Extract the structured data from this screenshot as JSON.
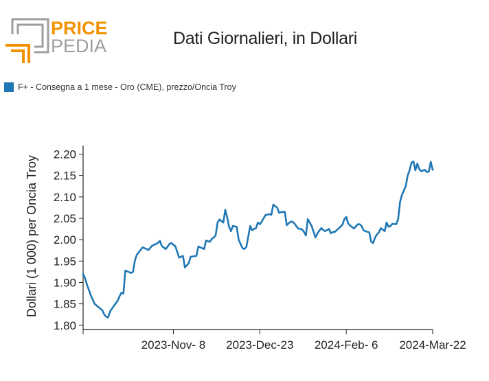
{
  "brand": {
    "line1": "PRICE",
    "line2": "PEDIA"
  },
  "title": "Dati Giornalieri, in Dollari",
  "legend": {
    "label": "F+ - Consegna a 1 mese - Oro (CME), prezzo/Oncia Troy"
  },
  "colors": {
    "series": "#1f77b4",
    "brand_orange": "#f39200",
    "brand_gray": "#9e9e9e",
    "axis": "#222222"
  },
  "chart_data": {
    "type": "line",
    "ylabel": "Dollari (1 000) per Oncia Troy",
    "ylim": [
      1.79,
      2.22
    ],
    "yticks": [
      "2.20",
      "2.15",
      "2.10",
      "2.05",
      "2.00",
      "1.95",
      "1.90",
      "1.85",
      "1.80"
    ],
    "xlim": [
      "2023-Sep-22",
      "2024-Mar-22"
    ],
    "xticks": [
      "2023-Nov- 8",
      "2023-Dec-23",
      "2024-Feb- 6",
      "2024-Mar-22"
    ],
    "series": [
      {
        "x": [
          "2023-Sep-22",
          "2023-Sep-23",
          "2023-Sep-24",
          "2023-Sep-26",
          "2023-Sep-27",
          "2023-Sep-28",
          "2023-Oct-2",
          "2023-Oct-3",
          "2023-Oct-4",
          "2023-Oct-5",
          "2023-Oct-6",
          "2023-Oct-8",
          "2023-Oct-10",
          "2023-Oct-11",
          "2023-Oct-12",
          "2023-Oct-13",
          "2023-Oct-14",
          "2023-Oct-16",
          "2023-Oct-17",
          "2023-Oct-18",
          "2023-Oct-19",
          "2023-Oct-20",
          "2023-Oct-23",
          "2023-Oct-24",
          "2023-Oct-26",
          "2023-Oct-28",
          "2023-Oct-29",
          "2023-Oct-30",
          "2023-Oct-31",
          "2023-Nov-1",
          "2023-Nov-2",
          "2023-Nov-4",
          "2023-Nov-6",
          "2023-Nov-7",
          "2023-Nov-8",
          "2023-Nov-9",
          "2023-Nov-10",
          "2023-Nov-11",
          "2023-Nov-13",
          "2023-Nov-14",
          "2023-Nov-15",
          "2023-Nov-16",
          "2023-Nov-17",
          "2023-Nov-20",
          "2023-Nov-21",
          "2023-Nov-22",
          "2023-Nov-23",
          "2023-Nov-24",
          "2023-Nov-25",
          "2023-Nov-27",
          "2023-Nov-28",
          "2023-Nov-29",
          "2023-Nov-30",
          "2023-Dec-1",
          "2023-Dec-2",
          "2023-Dec-4",
          "2023-Dec-5",
          "2023-Dec-6",
          "2023-Dec-7",
          "2023-Dec-8",
          "2023-Dec-9",
          "2023-Dec-11",
          "2023-Dec-12",
          "2023-Dec-13",
          "2023-Dec-14",
          "2023-Dec-15",
          "2023-Dec-16",
          "2023-Dec-18",
          "2023-Dec-19",
          "2023-Dec-20",
          "2023-Dec-21",
          "2023-Dec-22",
          "2023-Dec-23",
          "2023-Dec-24",
          "2023-Dec-26",
          "2023-Dec-27",
          "2023-Dec-28",
          "2023-Dec-29",
          "2023-Dec-30",
          "2024-Jan-1",
          "2024-Jan-2",
          "2024-Jan-3",
          "2024-Jan-4",
          "2024-Jan-5",
          "2024-Jan-6",
          "2024-Jan-8",
          "2024-Jan-9",
          "2024-Jan-10",
          "2024-Jan-11",
          "2024-Jan-12",
          "2024-Jan-14",
          "2024-Jan-15",
          "2024-Jan-16",
          "2024-Jan-17",
          "2024-Jan-18",
          "2024-Jan-19",
          "2024-Jan-21",
          "2024-Jan-22",
          "2024-Jan-24",
          "2024-Jan-25",
          "2024-Jan-26",
          "2024-Jan-28",
          "2024-Jan-29",
          "2024-Jan-30",
          "2024-Jan-31",
          "2024-Feb-1",
          "2024-Feb-2",
          "2024-Feb-4",
          "2024-Feb-5",
          "2024-Feb-6",
          "2024-Feb-7",
          "2024-Feb-8",
          "2024-Feb-10",
          "2024-Feb-12",
          "2024-Feb-13",
          "2024-Feb-14",
          "2024-Feb-15",
          "2024-Feb-16",
          "2024-Feb-18",
          "2024-Feb-19",
          "2024-Feb-20",
          "2024-Feb-21",
          "2024-Feb-22",
          "2024-Feb-23",
          "2024-Feb-24",
          "2024-Feb-26",
          "2024-Feb-27",
          "2024-Feb-28",
          "2024-Feb-29",
          "2024-Mar-1",
          "2024-Mar-3",
          "2024-Mar-4",
          "2024-Mar-5",
          "2024-Mar-6",
          "2024-Mar-8",
          "2024-Mar-9",
          "2024-Mar-10",
          "2024-Mar-11",
          "2024-Mar-12",
          "2024-Mar-13",
          "2024-Mar-14",
          "2024-Mar-15",
          "2024-Mar-16",
          "2024-Mar-18",
          "2024-Mar-19",
          "2024-Mar-20",
          "2024-Mar-21",
          "2024-Mar-22"
        ],
        "y": [
          1.92,
          1.91,
          1.895,
          1.87,
          1.86,
          1.85,
          1.835,
          1.825,
          1.82,
          1.818,
          1.832,
          1.845,
          1.857,
          1.868,
          1.876,
          1.874,
          1.928,
          1.924,
          1.922,
          1.925,
          1.952,
          1.965,
          1.982,
          1.98,
          1.976,
          1.986,
          1.988,
          1.99,
          1.993,
          1.997,
          1.985,
          1.978,
          1.99,
          1.992,
          1.988,
          1.985,
          1.972,
          1.958,
          1.962,
          1.935,
          1.94,
          1.945,
          1.96,
          1.962,
          1.984,
          1.982,
          1.98,
          1.978,
          1.998,
          1.995,
          2.002,
          2.005,
          2.01,
          2.04,
          2.047,
          2.04,
          2.07,
          2.052,
          2.03,
          2.02,
          2.032,
          2.03,
          2.0,
          1.99,
          1.98,
          1.978,
          1.983,
          2.032,
          2.022,
          2.025,
          2.027,
          2.04,
          2.036,
          2.042,
          2.058,
          2.058,
          2.06,
          2.058,
          2.082,
          2.075,
          2.063,
          2.064,
          2.065,
          2.065,
          2.034,
          2.042,
          2.042,
          2.038,
          2.032,
          2.026,
          2.024,
          2.018,
          2.01,
          2.048,
          2.04,
          2.032,
          2.005,
          2.015,
          2.027,
          2.023,
          2.02,
          2.025,
          2.015,
          2.018,
          2.018,
          2.022,
          2.026,
          2.035,
          2.048,
          2.053,
          2.038,
          2.033,
          2.026,
          2.036,
          2.036,
          2.032,
          2.022,
          2.02,
          2.017,
          1.995,
          1.992,
          2.005,
          2.012,
          2.017,
          2.027,
          2.02,
          2.04,
          2.03,
          2.032,
          2.037,
          2.036,
          2.048,
          2.088,
          2.105,
          2.125,
          2.15,
          2.162,
          2.18,
          2.183,
          2.162,
          2.178,
          2.165,
          2.16,
          2.163,
          2.158,
          2.159,
          2.182,
          2.163
        ]
      }
    ]
  }
}
